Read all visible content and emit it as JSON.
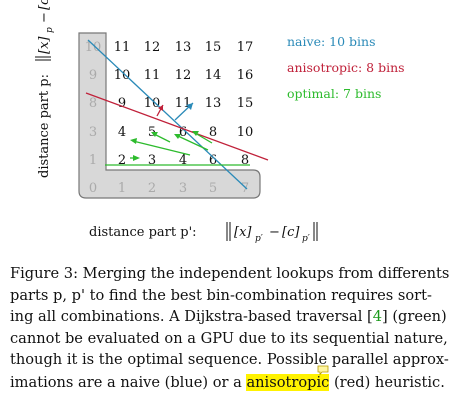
{
  "figure": {
    "y_axis_label": "distance part p:",
    "x_axis_label": "distance part p':",
    "grid_values": [
      [
        "10",
        "11",
        "12",
        "13",
        "15",
        "17"
      ],
      [
        "9",
        "10",
        "11",
        "12",
        "14",
        "16"
      ],
      [
        "8",
        "9",
        "10",
        "11",
        "13",
        "15"
      ],
      [
        "3",
        "4",
        "5",
        "6",
        "8",
        "10"
      ],
      [
        "1",
        "2",
        "3",
        "4",
        "6",
        "8"
      ],
      [
        "0",
        "1",
        "2",
        "3",
        "5",
        "7"
      ]
    ],
    "legend": [
      {
        "label": "naive: 10 bins",
        "color": "#2a8ab8"
      },
      {
        "label": "anisotropic: 8 bins",
        "color": "#c0213a"
      },
      {
        "label": "optimal: 7 bins",
        "color": "#2dbb2d"
      }
    ],
    "colors": {
      "axis_band": "#d8d8d8",
      "axis_text": "#aaaaaa"
    }
  },
  "caption": {
    "lines": [
      {
        "text": "Figure 3: Merging the independent lookups from differents"
      },
      {
        "text": "parts p, p' to find the best bin-combination requires sort-"
      },
      {
        "before": "ing all combinations. A Dijkstra-based traversal [",
        "cite": "4",
        "after": "] (green)"
      },
      {
        "text": "cannot be evaluated on a GPU due to its sequential nature,"
      },
      {
        "text": "though it is the optimal sequence. Possible parallel approx-"
      },
      {
        "before": "imations are a naive (blue) or a ",
        "highlight": "anisotropic",
        "after": " (red) heuristic."
      }
    ]
  }
}
